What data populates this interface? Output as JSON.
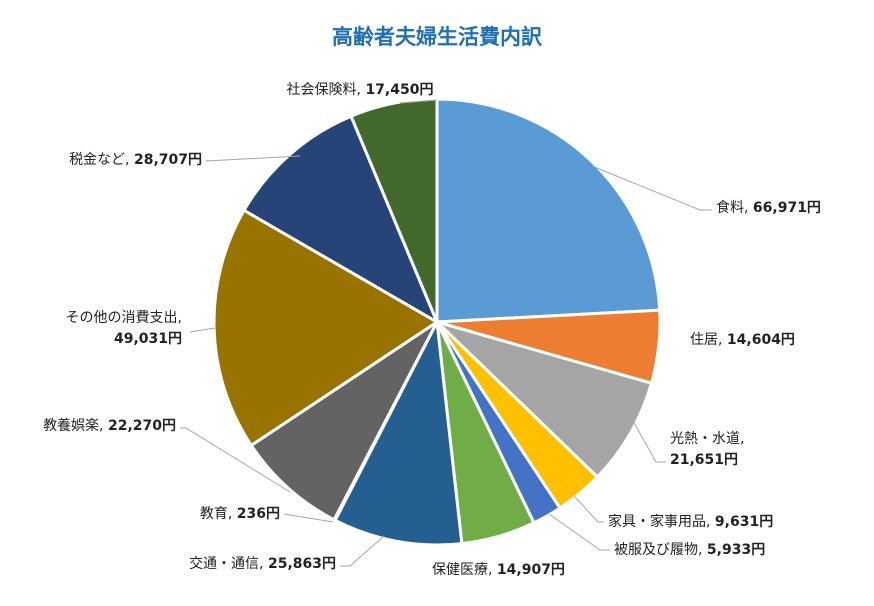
{
  "chart_data": {
    "type": "pie",
    "title": "高齢者夫婦生活費内訳",
    "unit": "円",
    "slices": [
      {
        "name": "食料",
        "value": 66971,
        "value_label": "66,971円",
        "color": "#5b9bd5"
      },
      {
        "name": "住居",
        "value": 14604,
        "value_label": "14,604円",
        "color": "#ed7d31"
      },
      {
        "name": "光熱・水道",
        "value": 21651,
        "value_label": "21,651円",
        "color": "#a5a5a5"
      },
      {
        "name": "家具・家事用品",
        "value": 9631,
        "value_label": "9,631円",
        "color": "#ffc000"
      },
      {
        "name": "被服及び履物",
        "value": 5933,
        "value_label": "5,933円",
        "color": "#4472c4"
      },
      {
        "name": "保健医療",
        "value": 14907,
        "value_label": "14,907円",
        "color": "#70ad47"
      },
      {
        "name": "交通・通信",
        "value": 25863,
        "value_label": "25,863円",
        "color": "#255e91"
      },
      {
        "name": "教育",
        "value": 236,
        "value_label": "236円",
        "color": "#9e480e"
      },
      {
        "name": "教養娯楽",
        "value": 22270,
        "value_label": "22,270円",
        "color": "#636363"
      },
      {
        "name": "その他の消費支出",
        "value": 49031,
        "value_label": "49,031円",
        "color": "#997300"
      },
      {
        "name": "税金など",
        "value": 28707,
        "value_label": "28,707円",
        "color": "#264478"
      },
      {
        "name": "社会保険料",
        "value": 17450,
        "value_label": "17,450円",
        "color": "#43682b"
      }
    ]
  }
}
